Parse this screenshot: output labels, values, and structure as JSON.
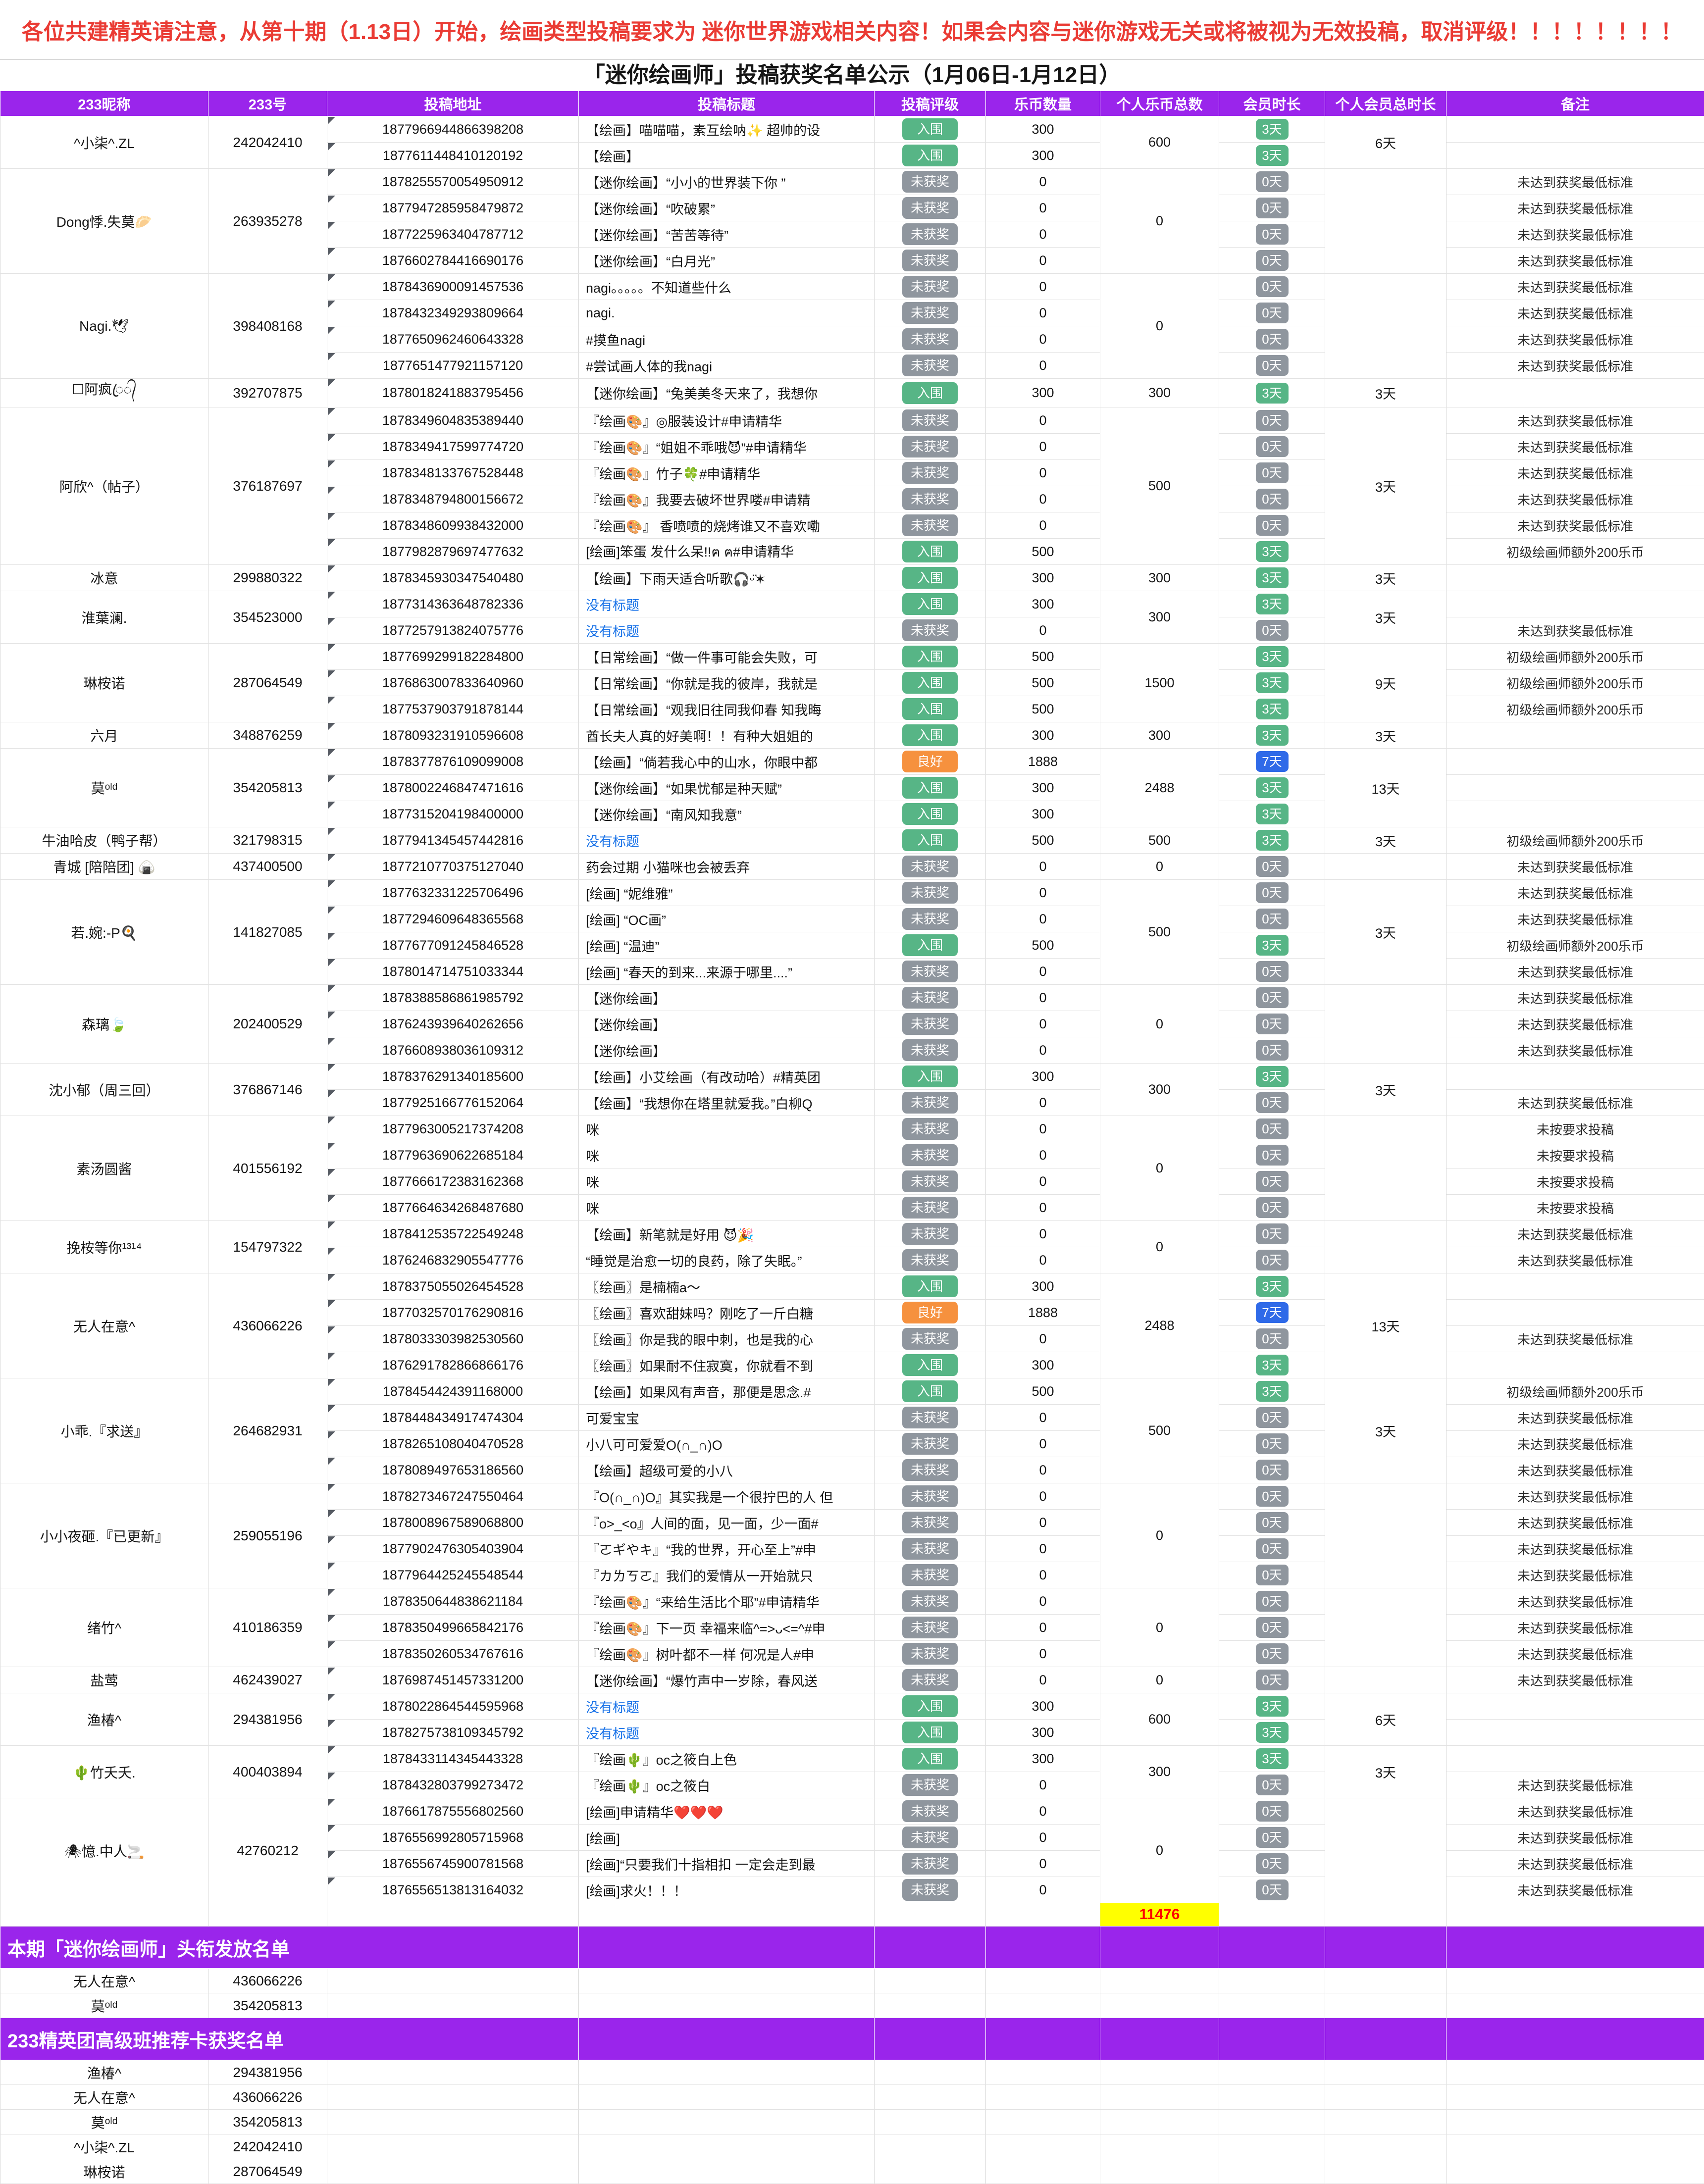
{
  "banner": {
    "text": "各位共建精英请注意，从第十期（1.13日）开始，绘画类型投稿要求为 迷你世界游戏相关内容！如果会内容与迷你游戏无关或将被视为无效投稿，取消评级！！！！！！！！",
    "color": "#ea3b34"
  },
  "title": "「迷你绘画师」投稿获奖名单公示（1月06日-1月12日）",
  "columns": [
    "233昵称",
    "233号",
    "投稿地址",
    "投稿标题",
    "投稿评级",
    "乐币数量",
    "个人乐币总数",
    "会员时长",
    "个人会员总时长",
    "备注"
  ],
  "colors": {
    "header_purple": "#9a25eb",
    "badge_green": "#57b586",
    "badge_gray": "#8f969e",
    "badge_blue": "#2f6ae8",
    "badge_orange": "#f6913d",
    "total_yellow": "#ffff00",
    "total_red": "#ff0000",
    "link_blue": "#1a73e8"
  },
  "badge_colors": {
    "rating": {
      "入围": "bg-green",
      "未获奖": "bg-gray",
      "良好": "bg-orange"
    },
    "member": {
      "3天": "bg-green",
      "0天": "bg-gray",
      "7天": "bg-blue"
    }
  },
  "grand_total": "11476",
  "groups": [
    {
      "nickname": "^小柒^.ZL",
      "id": "242042410",
      "total_coins": "600",
      "total_member": "6天",
      "rows": [
        {
          "addr": "1877966944866398208",
          "title": "【绘画】喵喵喵，素互绘呐✨ 超帅的设",
          "rating": "入围",
          "coins": "300",
          "member": "3天",
          "remark": ""
        },
        {
          "addr": "1877611448410120192",
          "title": "【绘画】",
          "rating": "入围",
          "coins": "300",
          "member": "3天",
          "remark": ""
        }
      ]
    },
    {
      "nickname": "Dong悸.失莫🥟",
      "id": "263935278",
      "total_coins": "0",
      "total_member": "",
      "rows": [
        {
          "addr": "1878255570054950912",
          "title": "【迷你绘画】“小小的世界装下你 ”",
          "rating": "未获奖",
          "coins": "0",
          "member": "0天",
          "remark": "未达到获奖最低标准"
        },
        {
          "addr": "1877947285958479872",
          "title": "【迷你绘画】“吹破累”",
          "rating": "未获奖",
          "coins": "0",
          "member": "0天",
          "remark": "未达到获奖最低标准"
        },
        {
          "addr": "1877225963404787712",
          "title": "【迷你绘画】“苦苦等待”",
          "rating": "未获奖",
          "coins": "0",
          "member": "0天",
          "remark": "未达到获奖最低标准"
        },
        {
          "addr": "1876602784416690176",
          "title": "【迷你绘画】“白月光”",
          "rating": "未获奖",
          "coins": "0",
          "member": "0天",
          "remark": "未达到获奖最低标准"
        }
      ]
    },
    {
      "nickname": "Nagi.🕊",
      "id": "398408168",
      "total_coins": "0",
      "total_member": "",
      "rows": [
        {
          "addr": "1878436900091457536",
          "title": "nagi。。。。。不知道些什么",
          "rating": "未获奖",
          "coins": "0",
          "member": "0天",
          "remark": "未达到获奖最低标准"
        },
        {
          "addr": "1878432349293809664",
          "title": "nagi.",
          "rating": "未获奖",
          "coins": "0",
          "member": "0天",
          "remark": "未达到获奖最低标准"
        },
        {
          "addr": "1877650962460643328",
          "title": "#摸鱼nagi",
          "rating": "未获奖",
          "coins": "0",
          "member": "0天",
          "remark": "未达到获奖最低标准"
        },
        {
          "addr": "1877651477921157120",
          "title": "#尝试画人体的我nagi",
          "rating": "未获奖",
          "coins": "0",
          "member": "0天",
          "remark": "未达到获奖最低标准"
        }
      ]
    },
    {
      "nickname": "☐阿疯ꦿ᭄",
      "id": "392707875",
      "total_coins": "300",
      "total_member": "3天",
      "rows": [
        {
          "addr": "1878018241883795456",
          "title": "【迷你绘画】“兔美美冬天来了，我想你",
          "rating": "入围",
          "coins": "300",
          "member": "3天",
          "remark": ""
        }
      ]
    },
    {
      "nickname": "阿欣^（帖子）",
      "id": "376187697",
      "total_coins": "500",
      "total_member": "3天",
      "rows": [
        {
          "addr": "1878349604835389440",
          "title": "『绘画🎨』◎服装设计#申请精华",
          "rating": "未获奖",
          "coins": "0",
          "member": "0天",
          "remark": "未达到获奖最低标准"
        },
        {
          "addr": "1878349417599774720",
          "title": "『绘画🎨』“姐姐不乖哦😈”#申请精华",
          "rating": "未获奖",
          "coins": "0",
          "member": "0天",
          "remark": "未达到获奖最低标准"
        },
        {
          "addr": "1878348133767528448",
          "title": "『绘画🎨』竹子🍀#申请精华",
          "rating": "未获奖",
          "coins": "0",
          "member": "0天",
          "remark": "未达到获奖最低标准"
        },
        {
          "addr": "1878348794800156672",
          "title": "『绘画🎨』我要去破坏世界喽#申请精",
          "rating": "未获奖",
          "coins": "0",
          "member": "0天",
          "remark": "未达到获奖最低标准"
        },
        {
          "addr": "1878348609938432000",
          "title": "『绘画🎨』 香喷喷的烧烤谁又不喜欢嘞",
          "rating": "未获奖",
          "coins": "0",
          "member": "0天",
          "remark": "未达到获奖最低标准"
        },
        {
          "addr": "1877982879697477632",
          "title": "[绘画]笨蛋 发什么呆!!ฅ ฅ#申请精华",
          "rating": "入围",
          "coins": "500",
          "member": "3天",
          "remark": "初级绘画师额外200乐币"
        }
      ]
    },
    {
      "nickname": "冰意",
      "id": "299880322",
      "total_coins": "300",
      "total_member": "3天",
      "rows": [
        {
          "addr": "1878345930347540480",
          "title": "【绘画】下雨天适合听歌🎧ᵕ̈✶",
          "rating": "入围",
          "coins": "300",
          "member": "3天",
          "remark": ""
        }
      ]
    },
    {
      "nickname": "淮葉澜.",
      "id": "354523000",
      "total_coins": "300",
      "total_member": "3天",
      "rows": [
        {
          "addr": "1877314363648782336",
          "title": "没有标题",
          "link": true,
          "rating": "入围",
          "coins": "300",
          "member": "3天",
          "remark": ""
        },
        {
          "addr": "1877257913824075776",
          "title": "没有标题",
          "link": true,
          "rating": "未获奖",
          "coins": "0",
          "member": "0天",
          "remark": "未达到获奖最低标准"
        }
      ]
    },
    {
      "nickname": "琳桉诺",
      "id": "287064549",
      "total_coins": "1500",
      "total_member": "9天",
      "rows": [
        {
          "addr": "1877699299182284800",
          "title": "【日常绘画】“做一件事可能会失败，可",
          "rating": "入围",
          "coins": "500",
          "member": "3天",
          "remark": "初级绘画师额外200乐币"
        },
        {
          "addr": "1876863007833640960",
          "title": "【日常绘画】“你就是我的彼岸，我就是",
          "rating": "入围",
          "coins": "500",
          "member": "3天",
          "remark": "初级绘画师额外200乐币"
        },
        {
          "addr": "1877537903791878144",
          "title": "【日常绘画】“观我旧往同我仰春 知我晦",
          "rating": "入围",
          "coins": "500",
          "member": "3天",
          "remark": "初级绘画师额外200乐币"
        }
      ]
    },
    {
      "nickname": "六月",
      "id": "348876259",
      "total_coins": "300",
      "total_member": "3天",
      "rows": [
        {
          "addr": "1878093231910596608",
          "title": "酋长夫人真的好美啊！！有种大姐姐的",
          "rating": "入围",
          "coins": "300",
          "member": "3天",
          "remark": ""
        }
      ]
    },
    {
      "nickname": "莫ᵒˡᵈ",
      "id": "354205813",
      "total_coins": "2488",
      "total_member": "13天",
      "rows": [
        {
          "addr": "1878377876109099008",
          "title": "【绘画】“倘若我心中的山水，你眼中都",
          "rating": "良好",
          "coins": "1888",
          "member": "7天",
          "remark": ""
        },
        {
          "addr": "1878002246847471616",
          "title": "【迷你绘画】“如果忧郁是种天赋”",
          "rating": "入围",
          "coins": "300",
          "member": "3天",
          "remark": ""
        },
        {
          "addr": "1877315204198400000",
          "title": "【迷你绘画】“南风知我意”",
          "rating": "入围",
          "coins": "300",
          "member": "3天",
          "remark": ""
        }
      ]
    },
    {
      "nickname": "牛油哈皮（鸭子帮）",
      "id": "321798315",
      "total_coins": "500",
      "total_member": "3天",
      "rows": [
        {
          "addr": "1877941345457442816",
          "title": "没有标题",
          "link": true,
          "rating": "入围",
          "coins": "500",
          "member": "3天",
          "remark": "初级绘画师额外200乐币"
        }
      ]
    },
    {
      "nickname": "青城 [陪陪团] 🍙",
      "id": "437400500",
      "total_coins": "0",
      "total_member": "",
      "rows": [
        {
          "addr": "1877210770375127040",
          "title": "药会过期 小猫咪也会被丢弃",
          "rating": "未获奖",
          "coins": "0",
          "member": "0天",
          "remark": "未达到获奖最低标准"
        }
      ]
    },
    {
      "nickname": "若.婉:-P🍳",
      "id": "141827085",
      "total_coins": "500",
      "total_member": "3天",
      "rows": [
        {
          "addr": "1877632331225706496",
          "title": "[绘画] “妮维雅”",
          "rating": "未获奖",
          "coins": "0",
          "member": "0天",
          "remark": "未达到获奖最低标准"
        },
        {
          "addr": "1877294609648365568",
          "title": "[绘画] “OC画”",
          "rating": "未获奖",
          "coins": "0",
          "member": "0天",
          "remark": "未达到获奖最低标准"
        },
        {
          "addr": "1877677091245846528",
          "title": "[绘画] “温迪”",
          "rating": "入围",
          "coins": "500",
          "member": "3天",
          "remark": "初级绘画师额外200乐币"
        },
        {
          "addr": "1878014714751033344",
          "title": "[绘画] “春天的到来...来源于哪里....”",
          "rating": "未获奖",
          "coins": "0",
          "member": "0天",
          "remark": "未达到获奖最低标准"
        }
      ]
    },
    {
      "nickname": "森璃🍃",
      "id": "202400529",
      "total_coins": "0",
      "total_member": "",
      "rows": [
        {
          "addr": "1878388586861985792",
          "title": "【迷你绘画】",
          "rating": "未获奖",
          "coins": "0",
          "member": "0天",
          "remark": "未达到获奖最低标准"
        },
        {
          "addr": "1876243939640262656",
          "title": "【迷你绘画】",
          "rating": "未获奖",
          "coins": "0",
          "member": "0天",
          "remark": "未达到获奖最低标准"
        },
        {
          "addr": "1876608938036109312",
          "title": "【迷你绘画】",
          "rating": "未获奖",
          "coins": "0",
          "member": "0天",
          "remark": "未达到获奖最低标准"
        }
      ]
    },
    {
      "nickname": "沈小郁（周三回）",
      "id": "376867146",
      "total_coins": "300",
      "total_member": "3天",
      "rows": [
        {
          "addr": "1878376291340185600",
          "title": "【绘画】小艾绘画（有改动哈）#精英团",
          "rating": "入围",
          "coins": "300",
          "member": "3天",
          "remark": ""
        },
        {
          "addr": "1877925166776152064",
          "title": "【绘画】“我想你在塔里就爱我。”白柳Q",
          "rating": "未获奖",
          "coins": "0",
          "member": "0天",
          "remark": "未达到获奖最低标准"
        }
      ]
    },
    {
      "nickname": "素汤圆酱",
      "id": "401556192",
      "total_coins": "0",
      "total_member": "",
      "rows": [
        {
          "addr": "1877963005217374208",
          "title": "咪",
          "rating": "未获奖",
          "coins": "0",
          "member": "0天",
          "remark": "未按要求投稿"
        },
        {
          "addr": "1877963690622685184",
          "title": "咪",
          "rating": "未获奖",
          "coins": "0",
          "member": "0天",
          "remark": "未按要求投稿"
        },
        {
          "addr": "1877666172383162368",
          "title": "咪",
          "rating": "未获奖",
          "coins": "0",
          "member": "0天",
          "remark": "未按要求投稿"
        },
        {
          "addr": "1877664634268487680",
          "title": "咪",
          "rating": "未获奖",
          "coins": "0",
          "member": "0天",
          "remark": "未按要求投稿"
        }
      ]
    },
    {
      "nickname": "挽桉等你¹³¹⁴",
      "id": "154797322",
      "total_coins": "0",
      "total_member": "",
      "rows": [
        {
          "addr": "1878412535722549248",
          "title": "【绘画】新笔就是好用 😈🎉",
          "rating": "未获奖",
          "coins": "0",
          "member": "0天",
          "remark": "未达到获奖最低标准"
        },
        {
          "addr": "1876246832905547776",
          "title": "“睡觉是治愈一切的良药，除了失眠。”",
          "rating": "未获奖",
          "coins": "0",
          "member": "0天",
          "remark": "未达到获奖最低标准"
        }
      ]
    },
    {
      "nickname": "无人在意^",
      "id": "436066226",
      "total_coins": "2488",
      "total_member": "13天",
      "rows": [
        {
          "addr": "1878375055026454528",
          "title": "〖绘画〗是楠楠a～",
          "rating": "入围",
          "coins": "300",
          "member": "3天",
          "remark": ""
        },
        {
          "addr": "1877032570176290816",
          "title": "〖绘画〗喜欢甜妹吗？刚吃了一斤白糖",
          "rating": "良好",
          "coins": "1888",
          "member": "7天",
          "remark": ""
        },
        {
          "addr": "1878033303982530560",
          "title": "〖绘画〗你是我的眼中刺，也是我的心",
          "rating": "未获奖",
          "coins": "0",
          "member": "0天",
          "remark": "未达到获奖最低标准"
        },
        {
          "addr": "1876291782866866176",
          "title": "〖绘画〗如果耐不住寂寞，你就看不到",
          "rating": "入围",
          "coins": "300",
          "member": "3天",
          "remark": ""
        }
      ]
    },
    {
      "nickname": "小乖.『求送』",
      "id": "264682931",
      "total_coins": "500",
      "total_member": "3天",
      "rows": [
        {
          "addr": "1878454424391168000",
          "title": "【绘画】如果风有声音，那便是思念.#",
          "rating": "入围",
          "coins": "500",
          "member": "3天",
          "remark": "初级绘画师额外200乐币"
        },
        {
          "addr": "1878448434917474304",
          "title": "可爱宝宝",
          "rating": "未获奖",
          "coins": "0",
          "member": "0天",
          "remark": "未达到获奖最低标准"
        },
        {
          "addr": "1878265108040470528",
          "title": "小八可可爱爱O(∩_∩)O",
          "rating": "未获奖",
          "coins": "0",
          "member": "0天",
          "remark": "未达到获奖最低标准"
        },
        {
          "addr": "1878089497653186560",
          "title": "【绘画】超级可爱的小八",
          "rating": "未获奖",
          "coins": "0",
          "member": "0天",
          "remark": "未达到获奖最低标准"
        }
      ]
    },
    {
      "nickname": "小小夜砸.『已更新』",
      "id": "259055196",
      "total_coins": "0",
      "total_member": "",
      "rows": [
        {
          "addr": "1878273467247550464",
          "title": "『O(∩_∩)O』其实我是一个很拧巴的人 但",
          "rating": "未获奖",
          "coins": "0",
          "member": "0天",
          "remark": "未达到获奖最低标准"
        },
        {
          "addr": "1878008967589068800",
          "title": "『o>_<o』人间的面，见一面，少一面#",
          "rating": "未获奖",
          "coins": "0",
          "member": "0天",
          "remark": "未达到获奖最低标准"
        },
        {
          "addr": "1877902476305403904",
          "title": "『ㄛギやキ』“我的世界，开心至上”#申",
          "rating": "未获奖",
          "coins": "0",
          "member": "0天",
          "remark": "未达到获奖最低标准"
        },
        {
          "addr": "1877964425245548544",
          "title": "『カㄌㄎㄛ』我们的爱情从一开始就只",
          "rating": "未获奖",
          "coins": "0",
          "member": "0天",
          "remark": "未达到获奖最低标准"
        }
      ]
    },
    {
      "nickname": "绪竹^",
      "id": "410186359",
      "total_coins": "0",
      "total_member": "",
      "rows": [
        {
          "addr": "1878350644838621184",
          "title": "『绘画🎨』“来给生活比个耶”#申请精华",
          "rating": "未获奖",
          "coins": "0",
          "member": "0天",
          "remark": "未达到获奖最低标准"
        },
        {
          "addr": "1878350499665842176",
          "title": "『绘画🎨』下一页 幸福来临^=>ᴗ<=^#申",
          "rating": "未获奖",
          "coins": "0",
          "member": "0天",
          "remark": "未达到获奖最低标准"
        },
        {
          "addr": "1878350260534767616",
          "title": "『绘画🎨』树叶都不一样 何况是人#申",
          "rating": "未获奖",
          "coins": "0",
          "member": "0天",
          "remark": "未达到获奖最低标准"
        }
      ]
    },
    {
      "nickname": "盐莺",
      "id": "462439027",
      "total_coins": "0",
      "total_member": "",
      "rows": [
        {
          "addr": "1876987451457331200",
          "title": "【迷你绘画】“爆竹声中一岁除，春风送",
          "rating": "未获奖",
          "coins": "0",
          "member": "0天",
          "remark": "未达到获奖最低标准"
        }
      ]
    },
    {
      "nickname": "渔椿^",
      "id": "294381956",
      "total_coins": "600",
      "total_member": "6天",
      "rows": [
        {
          "addr": "1878022864544595968",
          "title": "没有标题",
          "link": true,
          "rating": "入围",
          "coins": "300",
          "member": "3天",
          "remark": ""
        },
        {
          "addr": "1878275738109345792",
          "title": "没有标题",
          "link": true,
          "rating": "入围",
          "coins": "300",
          "member": "3天",
          "remark": ""
        }
      ]
    },
    {
      "nickname": "🌵竹夭夭.",
      "id": "400403894",
      "total_coins": "300",
      "total_member": "3天",
      "rows": [
        {
          "addr": "1878433114345443328",
          "title": "『绘画🌵』oc之筱白上色",
          "rating": "入围",
          "coins": "300",
          "member": "3天",
          "remark": ""
        },
        {
          "addr": "1878432803799273472",
          "title": "『绘画🌵』oc之筱白",
          "rating": "未获奖",
          "coins": "0",
          "member": "0天",
          "remark": "未达到获奖最低标准"
        }
      ]
    },
    {
      "nickname": "🕷憶.中人🚬",
      "id": "42760212",
      "total_coins": "0",
      "total_member": "",
      "rows": [
        {
          "addr": "1876617875556802560",
          "title": "[绘画]申请精华❤️❤️❤️",
          "rating": "未获奖",
          "coins": "0",
          "member": "0天",
          "remark": "未达到获奖最低标准"
        },
        {
          "addr": "1876556992805715968",
          "title": "[绘画]",
          "rating": "未获奖",
          "coins": "0",
          "member": "0天",
          "remark": "未达到获奖最低标准"
        },
        {
          "addr": "1876556745900781568",
          "title": "[绘画]“只要我们十指相扣 一定会走到最",
          "rating": "未获奖",
          "coins": "0",
          "member": "0天",
          "remark": "未达到获奖最低标准"
        },
        {
          "addr": "1876556513813164032",
          "title": "[绘画]求火！！！",
          "rating": "未获奖",
          "coins": "0",
          "member": "0天",
          "remark": "未达到获奖最低标准"
        }
      ]
    }
  ],
  "sections": [
    {
      "header": "本期「迷你绘画师」头衔发放名单",
      "members": [
        {
          "name": "无人在意^",
          "id": "436066226"
        },
        {
          "name": "莫ᵒˡᵈ",
          "id": "354205813"
        }
      ]
    },
    {
      "header": "233精英团高级班推荐卡获奖名单",
      "members": [
        {
          "name": "渔椿^",
          "id": "294381956"
        },
        {
          "name": "无人在意^",
          "id": "436066226"
        },
        {
          "name": "莫ᵒˡᵈ",
          "id": "354205813"
        },
        {
          "name": "^小柒^.ZL",
          "id": "242042410"
        },
        {
          "name": "琳桉诺",
          "id": "287064549"
        }
      ]
    }
  ]
}
